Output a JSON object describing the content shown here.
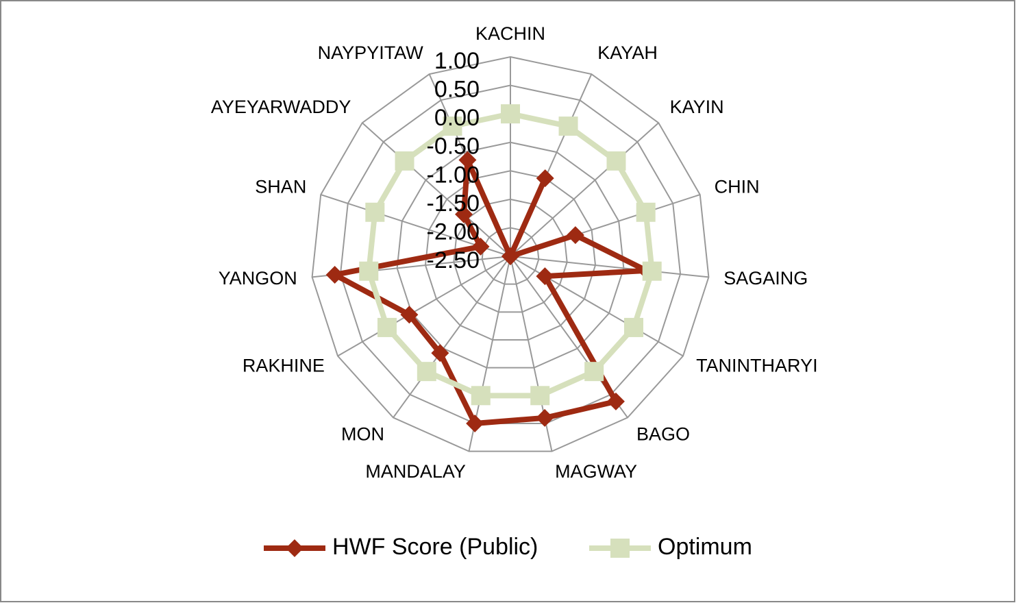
{
  "chart_data": {
    "type": "radar",
    "categories": [
      "KACHIN",
      "KAYAH",
      "KAYIN",
      "CHIN",
      "SAGAING",
      "TANINTHARYI",
      "BAGO",
      "MAGWAY",
      "MANDALAY",
      "MON",
      "RAKHINE",
      "YANGON",
      "SHAN",
      "AYEYARWADDY",
      "NAYPYITAW"
    ],
    "series": [
      {
        "name": "HWF Score (Public)",
        "color": "#9e2a12",
        "marker": "diamond",
        "values": [
          -2.5,
          -1.0,
          -2.5,
          -1.3,
          -0.1,
          -1.8,
          0.65,
          0.4,
          0.5,
          -0.4,
          -0.45,
          0.6,
          -1.95,
          -1.4,
          -0.65
        ]
      },
      {
        "name": "Optimum",
        "color": "#d6e0bc",
        "marker": "square",
        "values": [
          0,
          0,
          0,
          0,
          0,
          0,
          0,
          0,
          0,
          0,
          0,
          0,
          0,
          0,
          0
        ]
      }
    ],
    "rlim": [
      -2.5,
      1.0
    ],
    "rticks": [
      {
        "value": 1.0,
        "label": "1.00"
      },
      {
        "value": 0.5,
        "label": "0.50"
      },
      {
        "value": 0.0,
        "label": "0.00"
      },
      {
        "value": -0.5,
        "label": "-0.50"
      },
      {
        "value": -1.0,
        "label": "-1.00"
      },
      {
        "value": -1.5,
        "label": "-1.50"
      },
      {
        "value": -2.0,
        "label": "-2.00"
      },
      {
        "value": -2.5,
        "label": "-2.50"
      }
    ],
    "grid": true,
    "legend": "bottom"
  }
}
